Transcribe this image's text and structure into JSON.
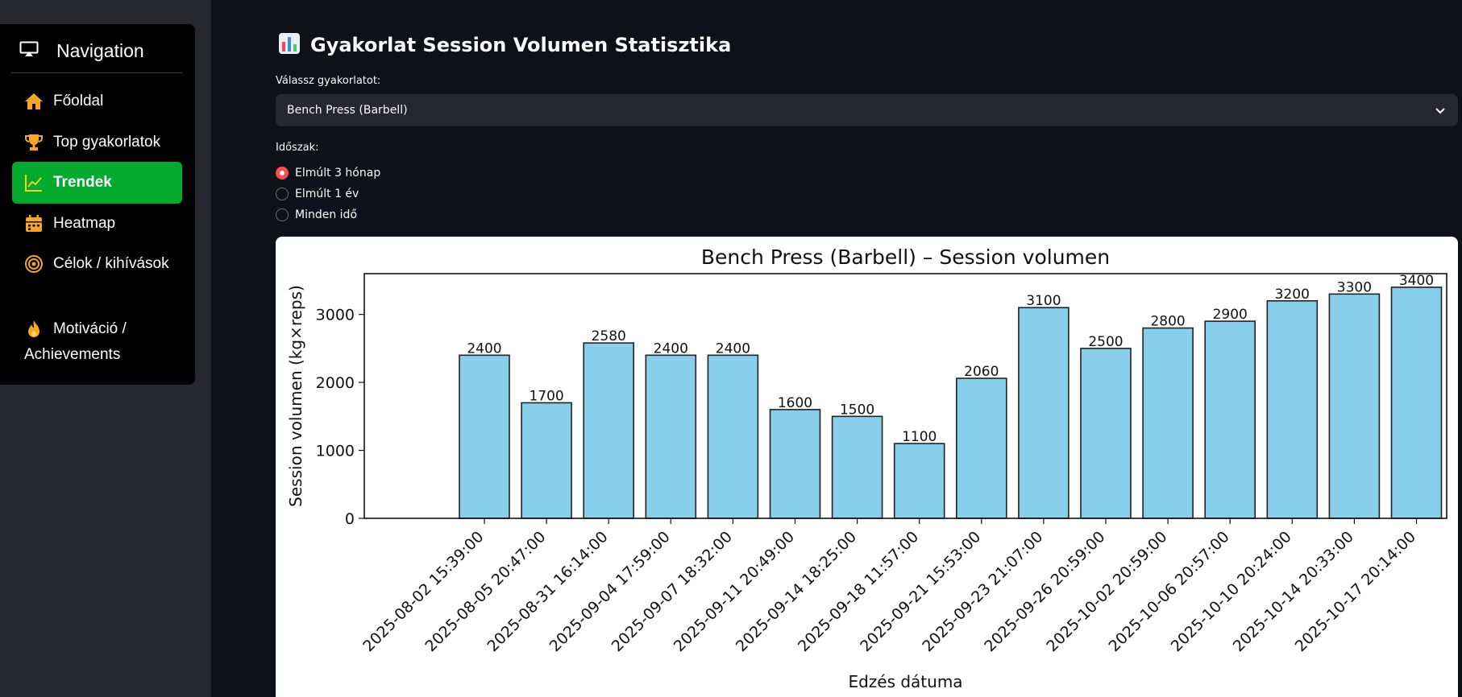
{
  "sidebar": {
    "header": "Navigation",
    "items": [
      {
        "label": "Főoldal",
        "icon": "home-icon"
      },
      {
        "label": "Top gyakorlatok",
        "icon": "trophy-icon"
      },
      {
        "label": "Trendek",
        "icon": "chart-line-icon",
        "active": true
      },
      {
        "label": "Heatmap",
        "icon": "calendar-icon"
      },
      {
        "label": "Célok / kihívások",
        "icon": "target-icon"
      },
      {
        "label": "Motiváció / Achievements",
        "icon": "fire-icon"
      }
    ]
  },
  "main": {
    "title": "Gyakorlat Session Volumen Statisztika",
    "exercise_label": "Válassz gyakorlatot:",
    "exercise_value": "Bench Press (Barbell)",
    "period_label": "Időszak:",
    "period_options": [
      "Elmúlt 3 hónap",
      "Elmúlt 1 év",
      "Minden idő"
    ],
    "period_selected": "Elmúlt 3 hónap"
  },
  "colors": {
    "accent_green": "#01aa2c",
    "radio_red": "#ff4b4b",
    "bar_fill": "#87ceeb",
    "icon_orange": "#f5a623"
  },
  "chart_data": {
    "type": "bar",
    "title": "Bench Press (Barbell) – Session volumen",
    "xlabel": "Edzés dátuma",
    "ylabel": "Session volumen (kg×reps)",
    "ylim": [
      0,
      3600
    ],
    "yticks": [
      0,
      1000,
      2000,
      3000
    ],
    "categories": [
      "2025-08-02 15:39:00",
      "2025-08-05 20:47:00",
      "2025-08-31 16:14:00",
      "2025-09-04 17:59:00",
      "2025-09-07 18:32:00",
      "2025-09-11 20:49:00",
      "2025-09-14 18:25:00",
      "2025-09-18 11:57:00",
      "2025-09-21 15:53:00",
      "2025-09-23 21:07:00",
      "2025-09-26 20:59:00",
      "2025-10-02 20:59:00",
      "2025-10-06 20:57:00",
      "2025-10-10 20:24:00",
      "2025-10-14 20:33:00",
      "2025-10-17 20:14:00"
    ],
    "values": [
      2400,
      1700,
      2580,
      2400,
      2400,
      1600,
      1500,
      1100,
      2060,
      3100,
      2500,
      2800,
      2900,
      3200,
      3300,
      3400
    ],
    "data_labels": true,
    "grid": false,
    "legend": false
  }
}
